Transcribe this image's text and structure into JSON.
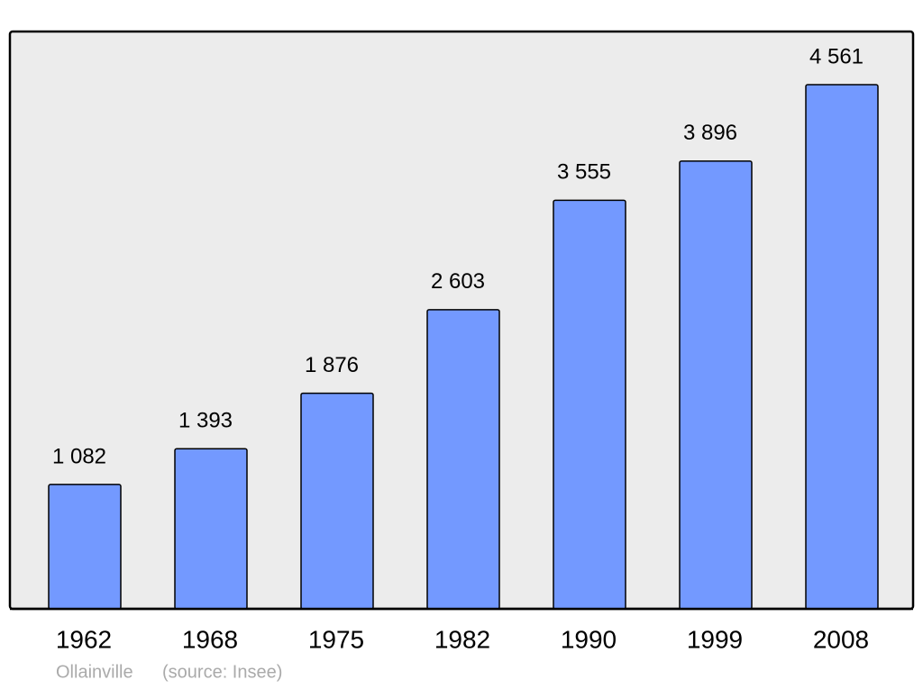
{
  "chart_data": {
    "type": "bar",
    "categories": [
      "1962",
      "1968",
      "1975",
      "1982",
      "1990",
      "1999",
      "2008"
    ],
    "values": [
      1082,
      1393,
      1876,
      2603,
      3555,
      3896,
      4561
    ],
    "value_labels": [
      "1 082",
      "1 393",
      "1 876",
      "2 603",
      "3 555",
      "3 896",
      "4 561"
    ],
    "color": "#7399ff",
    "place": "Ollainville",
    "source": "(source: Insee)"
  }
}
